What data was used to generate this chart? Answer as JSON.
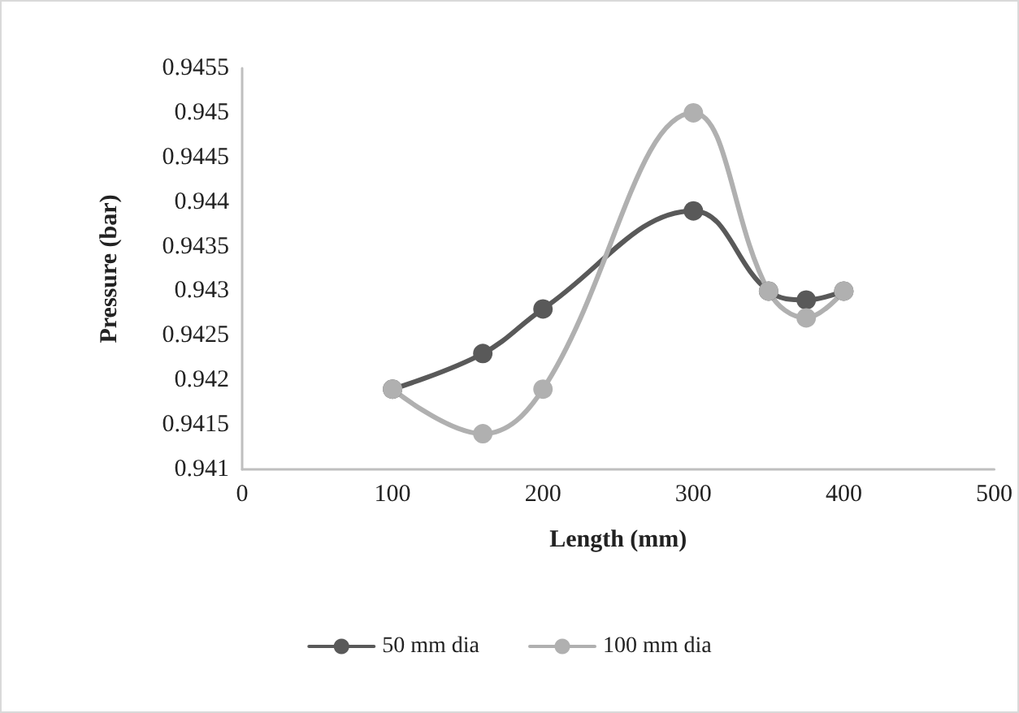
{
  "chart_data": {
    "type": "line",
    "xlabel": "Length (mm)",
    "ylabel": "Pressure (bar)",
    "x": [
      100,
      160,
      200,
      300,
      350,
      375,
      400
    ],
    "series": [
      {
        "name": "50 mm dia",
        "color": "#595959",
        "values": [
          0.9419,
          0.9423,
          0.9428,
          0.9439,
          0.943,
          0.9429,
          0.943
        ]
      },
      {
        "name": "100 mm dia",
        "color": "#b0b0b0",
        "values": [
          0.9419,
          0.9414,
          0.9419,
          0.945,
          0.943,
          0.9427,
          0.943
        ]
      }
    ],
    "xlim": [
      0,
      500
    ],
    "xticks": [
      0,
      100,
      200,
      300,
      400,
      500
    ],
    "ylim": [
      0.941,
      0.9455
    ],
    "yticks": [
      0.941,
      0.9415,
      0.942,
      0.9425,
      0.943,
      0.9435,
      0.944,
      0.9445,
      0.945,
      0.9455
    ],
    "grid": false,
    "legend": "bottom",
    "marker": "circle",
    "line_style": "solid"
  }
}
